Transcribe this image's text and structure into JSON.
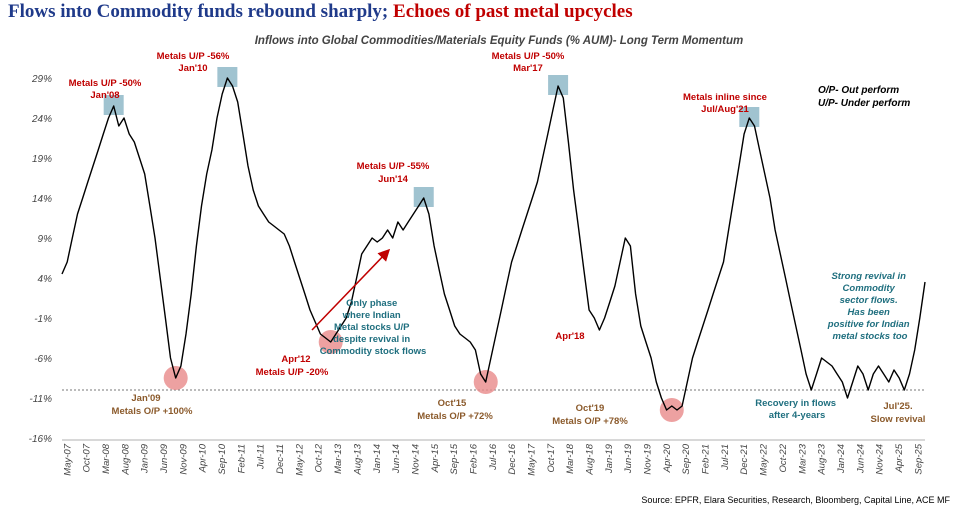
{
  "headline": {
    "part1": "Flows into Commodity funds rebound sharply;",
    "part2": "Echoes of past metal upcycles"
  },
  "colors": {
    "title_blue": "#1f3a8a",
    "title_red": "#c00000",
    "annotation_red": "#c00000",
    "annotation_brown": "#8b5a2b",
    "annotation_teal": "#1f6f7f",
    "highlight_box": "#8fb8c8",
    "highlight_circle": "#e88a8a",
    "line": "#000000"
  },
  "legend": {
    "op": "O/P- Out perform",
    "up": "U/P- Under perform"
  },
  "source": "Source: EPFR, Elara Securities, Research, Bloomberg, Capital Line, ACE MF",
  "annotations": {
    "jan08": {
      "l1": "Metals U/P -50%",
      "l2": "Jan'08"
    },
    "jan10": {
      "l1": "Metals U/P -56%",
      "l2": "Jan'10"
    },
    "jun14": {
      "l1": "Metals U/P -55%",
      "l2": "Jun'14"
    },
    "mar17": {
      "l1": "Metals U/P -50%",
      "l2": "Mar'17"
    },
    "jul21": {
      "l1": "Metals inline since",
      "l2": "Jul/Aug'21"
    },
    "jan09": {
      "l1": "Jan'09",
      "l2": "Metals O/P +100%"
    },
    "apr12": {
      "l1": "Apr'12",
      "l2": "Metals U/P -20%"
    },
    "oct15": {
      "l1": "Oct'15",
      "l2": "Metals O/P +72%"
    },
    "apr18": {
      "l1": "Apr'18"
    },
    "oct19": {
      "l1": "Oct'19",
      "l2": "Metals O/P +78%"
    },
    "jul25": {
      "l1": "Jul'25.",
      "l2": "Slow revival"
    },
    "only_phase": {
      "lines": [
        "Only phase",
        "where Indian",
        "Metal stocks U/P",
        "despite revival in",
        "Commodity stock flows"
      ]
    },
    "recovery": {
      "lines": [
        "Recovery in flows",
        "after 4-years"
      ]
    },
    "strong": {
      "lines": [
        "Strong revival in",
        "Commodity",
        "sector flows.",
        "Has been",
        "positive for Indian",
        "metal stocks too"
      ]
    }
  },
  "chart_data": {
    "type": "line",
    "subtitle": "Inflows into Global Commodities/Materials Equity Funds (% AUM)- Long Term Momentum",
    "xlabel": "",
    "ylabel": "",
    "ylim": [
      -16,
      31
    ],
    "yticks": [
      "29%",
      "24%",
      "19%",
      "14%",
      "9%",
      "4%",
      "-1%",
      "-6%",
      "-11%",
      "-16%"
    ],
    "ytick_values": [
      29,
      24,
      19,
      14,
      9,
      4,
      -1,
      -6,
      -11,
      -16
    ],
    "reference_line": -10,
    "xticks": [
      "May-07",
      "Oct-07",
      "Mar-08",
      "Aug-08",
      "Jan-09",
      "Jun-09",
      "Nov-09",
      "Apr-10",
      "Sep-10",
      "Feb-11",
      "Jul-11",
      "Dec-11",
      "May-12",
      "Oct-12",
      "Mar-13",
      "Aug-13",
      "Jan-14",
      "Jun-14",
      "Nov-14",
      "Apr-15",
      "Sep-15",
      "Feb-16",
      "Jul-16",
      "Dec-16",
      "May-17",
      "Oct-17",
      "Mar-18",
      "Aug-18",
      "Jan-19",
      "Jun-19",
      "Nov-19",
      "Apr-20",
      "Sep-20",
      "Feb-21",
      "Jul-21",
      "Dec-21",
      "May-22",
      "Oct-22",
      "Mar-23",
      "Aug-23",
      "Jan-24",
      "Jun-24",
      "Nov-24",
      "Apr-25",
      "Sep-25"
    ],
    "series": [
      {
        "name": "",
        "points": [
          [
            0,
            4.5
          ],
          [
            1,
            6
          ],
          [
            2,
            9
          ],
          [
            3,
            12
          ],
          [
            4,
            14
          ],
          [
            5,
            16
          ],
          [
            6,
            18
          ],
          [
            7,
            20
          ],
          [
            8,
            22
          ],
          [
            9,
            24
          ],
          [
            10,
            25.5
          ],
          [
            11,
            23
          ],
          [
            12,
            24
          ],
          [
            13,
            22
          ],
          [
            14,
            21
          ],
          [
            15,
            19
          ],
          [
            16,
            17
          ],
          [
            17,
            13
          ],
          [
            18,
            9
          ],
          [
            19,
            4
          ],
          [
            20,
            -1
          ],
          [
            21,
            -6
          ],
          [
            22,
            -8.5
          ],
          [
            23,
            -7
          ],
          [
            24,
            -3
          ],
          [
            25,
            2
          ],
          [
            26,
            8
          ],
          [
            27,
            13
          ],
          [
            28,
            17
          ],
          [
            29,
            20
          ],
          [
            30,
            24
          ],
          [
            31,
            27
          ],
          [
            32,
            29
          ],
          [
            33,
            28
          ],
          [
            34,
            26
          ],
          [
            35,
            22
          ],
          [
            36,
            18
          ],
          [
            37,
            15
          ],
          [
            38,
            13
          ],
          [
            39,
            12
          ],
          [
            40,
            11
          ],
          [
            41,
            10.5
          ],
          [
            42,
            10
          ],
          [
            43,
            9.5
          ],
          [
            44,
            8
          ],
          [
            45,
            6
          ],
          [
            46,
            4
          ],
          [
            47,
            2
          ],
          [
            48,
            0
          ],
          [
            49,
            -1.5
          ],
          [
            50,
            -3
          ],
          [
            51,
            -3.5
          ],
          [
            52,
            -4
          ],
          [
            53,
            -3
          ],
          [
            54,
            -2
          ],
          [
            55,
            -1
          ],
          [
            56,
            1
          ],
          [
            57,
            4
          ],
          [
            58,
            7
          ],
          [
            59,
            8
          ],
          [
            60,
            9
          ],
          [
            61,
            8.5
          ],
          [
            62,
            9
          ],
          [
            63,
            10
          ],
          [
            64,
            9
          ],
          [
            65,
            11
          ],
          [
            66,
            10
          ],
          [
            67,
            11
          ],
          [
            68,
            12
          ],
          [
            69,
            13
          ],
          [
            70,
            14
          ],
          [
            71,
            12
          ],
          [
            72,
            8
          ],
          [
            73,
            5
          ],
          [
            74,
            2
          ],
          [
            75,
            0
          ],
          [
            76,
            -2
          ],
          [
            77,
            -3
          ],
          [
            78,
            -3.5
          ],
          [
            79,
            -4
          ],
          [
            80,
            -5
          ],
          [
            81,
            -8
          ],
          [
            82,
            -9
          ],
          [
            83,
            -6
          ],
          [
            84,
            -3
          ],
          [
            85,
            0
          ],
          [
            86,
            3
          ],
          [
            87,
            6
          ],
          [
            88,
            8
          ],
          [
            89,
            10
          ],
          [
            90,
            12
          ],
          [
            91,
            14
          ],
          [
            92,
            16
          ],
          [
            93,
            19
          ],
          [
            94,
            22
          ],
          [
            95,
            25
          ],
          [
            96,
            28
          ],
          [
            97,
            26.5
          ],
          [
            98,
            21
          ],
          [
            99,
            15
          ],
          [
            100,
            10
          ],
          [
            101,
            5
          ],
          [
            102,
            0
          ],
          [
            103,
            -1
          ],
          [
            104,
            -2.5
          ],
          [
            105,
            -1
          ],
          [
            106,
            1
          ],
          [
            107,
            3
          ],
          [
            108,
            6
          ],
          [
            109,
            9
          ],
          [
            110,
            8
          ],
          [
            111,
            2
          ],
          [
            112,
            -2
          ],
          [
            113,
            -4
          ],
          [
            114,
            -6
          ],
          [
            115,
            -9
          ],
          [
            116,
            -11
          ],
          [
            117,
            -12.5
          ],
          [
            118,
            -12
          ],
          [
            119,
            -12.5
          ],
          [
            120,
            -12
          ],
          [
            121,
            -9
          ],
          [
            122,
            -6
          ],
          [
            123,
            -4
          ],
          [
            124,
            -2
          ],
          [
            125,
            0
          ],
          [
            126,
            2
          ],
          [
            127,
            4
          ],
          [
            128,
            6
          ],
          [
            129,
            10
          ],
          [
            130,
            14
          ],
          [
            131,
            18
          ],
          [
            132,
            22
          ],
          [
            133,
            24
          ],
          [
            134,
            23
          ],
          [
            135,
            20
          ],
          [
            136,
            17
          ],
          [
            137,
            14
          ],
          [
            138,
            10
          ],
          [
            139,
            7
          ],
          [
            140,
            4
          ],
          [
            141,
            1
          ],
          [
            142,
            -2
          ],
          [
            143,
            -5
          ],
          [
            144,
            -8
          ],
          [
            145,
            -10
          ],
          [
            146,
            -8
          ],
          [
            147,
            -6
          ],
          [
            148,
            -6.5
          ],
          [
            149,
            -7
          ],
          [
            150,
            -8
          ],
          [
            151,
            -9
          ],
          [
            152,
            -11
          ],
          [
            153,
            -9
          ],
          [
            154,
            -7
          ],
          [
            155,
            -8
          ],
          [
            156,
            -10
          ],
          [
            157,
            -8
          ],
          [
            158,
            -7
          ],
          [
            159,
            -8
          ],
          [
            160,
            -9
          ],
          [
            161,
            -7.5
          ],
          [
            162,
            -8.5
          ],
          [
            163,
            -10
          ],
          [
            164,
            -8
          ],
          [
            165,
            -5
          ],
          [
            166,
            -1
          ],
          [
            167,
            3.5
          ]
        ]
      }
    ],
    "highlights": {
      "boxes": [
        "Jan'08",
        "Jan'10",
        "Jun'14",
        "Mar'17",
        "Jul/Aug'21"
      ],
      "circles": [
        "Jan'09",
        "Apr'12",
        "Oct'15",
        "Oct'19"
      ]
    },
    "grid": false,
    "legend_position": "top-right"
  }
}
